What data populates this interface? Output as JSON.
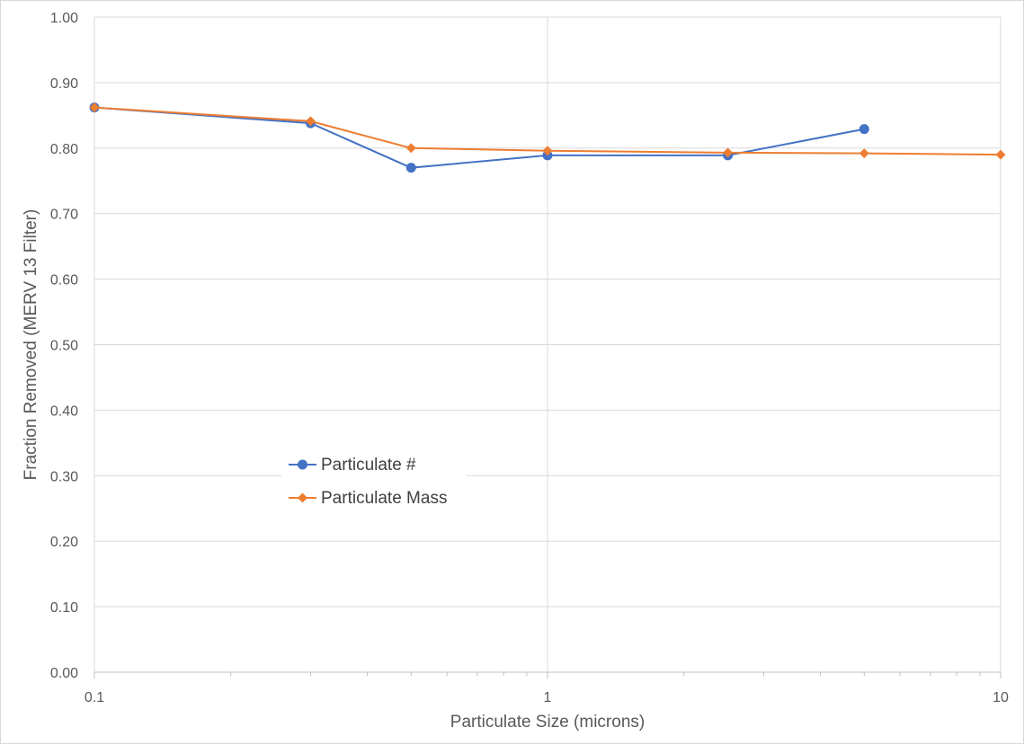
{
  "chart_data": {
    "type": "line",
    "title": "",
    "xlabel": "Particulate Size (microns)",
    "ylabel": "Fraction Removed  (MERV 13 Filter)",
    "x_scale": "log",
    "xlim": [
      0.1,
      10
    ],
    "ylim": [
      0,
      1
    ],
    "x_tick_labels": [
      "0.1",
      "1",
      "10"
    ],
    "y_tick_labels": [
      "0.00",
      "0.10",
      "0.20",
      "0.30",
      "0.40",
      "0.50",
      "0.60",
      "0.70",
      "0.80",
      "0.90",
      "1.00"
    ],
    "grid": true,
    "legend_position": "center-left",
    "series": [
      {
        "name": "Particulate #",
        "color": "#4472c4",
        "marker": "circle",
        "x": [
          0.1,
          0.3,
          0.5,
          1,
          2.5,
          5
        ],
        "y": [
          0.862,
          0.838,
          0.77,
          0.789,
          0.789,
          0.829
        ]
      },
      {
        "name": "Particulate Mass",
        "color": "#ed7d31",
        "marker": "diamond",
        "x": [
          0.1,
          0.3,
          0.5,
          1,
          2.5,
          5,
          10
        ],
        "y": [
          0.862,
          0.841,
          0.8,
          0.796,
          0.793,
          0.792,
          0.79
        ]
      }
    ]
  }
}
